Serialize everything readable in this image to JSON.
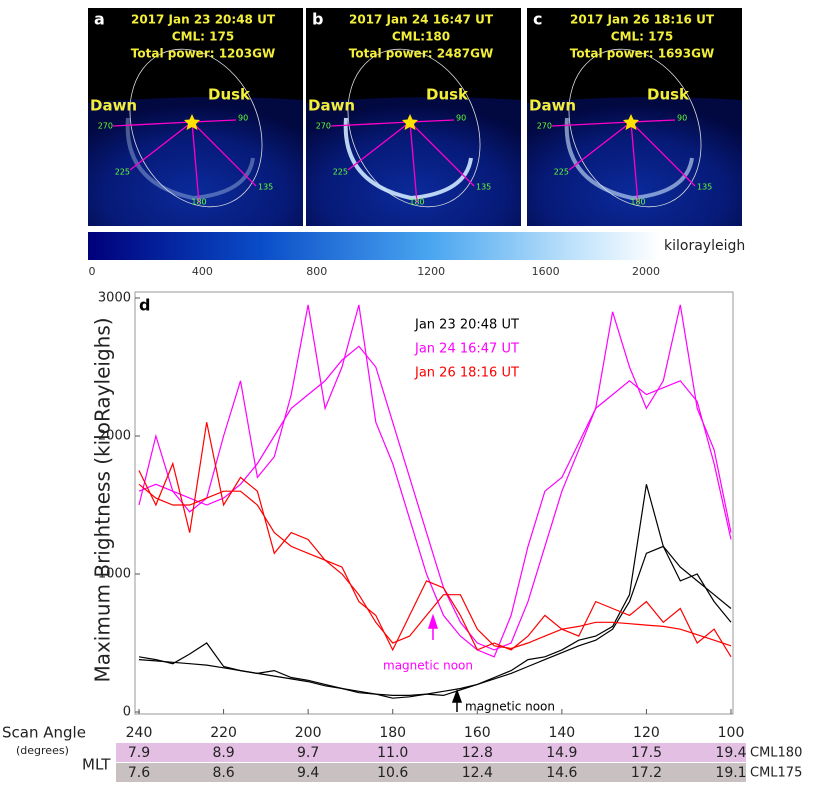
{
  "panels": [
    {
      "letter": "a",
      "lines": [
        "2017 Jan 23 20:48 UT",
        "CML: 175",
        "Total power: 1203GW"
      ],
      "dawn": "Dawn",
      "dusk": "Dusk",
      "angles": [
        "270",
        "90",
        "225",
        "135",
        "180"
      ]
    },
    {
      "letter": "b",
      "lines": [
        "2017 Jan 24 16:47 UT",
        "CML:180",
        "Total power: 2487GW"
      ],
      "dawn": "Dawn",
      "dusk": "Dusk",
      "angles": [
        "270",
        "90",
        "225",
        "135",
        "180"
      ]
    },
    {
      "letter": "c",
      "lines": [
        "2017 Jan 26 18:16 UT",
        "CML: 175",
        "Total power: 1693GW"
      ],
      "dawn": "Dawn",
      "dusk": "Dusk",
      "angles": [
        "270",
        "90",
        "225",
        "135",
        "180"
      ]
    }
  ],
  "colorbar": {
    "lim": [
      0,
      2000
    ],
    "ticks": [
      0,
      400,
      800,
      1200,
      1600,
      2000
    ],
    "label": "kilorayleigh"
  },
  "chart_data": {
    "type": "line",
    "panel_label": "d",
    "y_label": "Maximum Brightness (kiloRayleighs)",
    "x": [
      240,
      236,
      232,
      228,
      224,
      220,
      216,
      212,
      208,
      204,
      200,
      196,
      192,
      188,
      184,
      180,
      176,
      172,
      168,
      164,
      160,
      156,
      152,
      148,
      144,
      140,
      136,
      132,
      128,
      124,
      120,
      116,
      112,
      108,
      104,
      100
    ],
    "xlim": [
      240,
      100
    ],
    "xticks": [
      240,
      220,
      200,
      180,
      160,
      140,
      120,
      100
    ],
    "ylim": [
      0,
      3000
    ],
    "yticks": [
      0,
      1000,
      2000,
      3000
    ],
    "series": [
      {
        "name": "Jan 23 20:48 UT",
        "color": "#000000",
        "values": [
          400,
          380,
          350,
          420,
          500,
          330,
          300,
          280,
          300,
          250,
          230,
          200,
          170,
          140,
          130,
          100,
          110,
          130,
          120,
          160,
          200,
          250,
          300,
          380,
          400,
          450,
          520,
          550,
          620,
          850,
          1650,
          1200,
          950,
          1000,
          800,
          650
        ],
        "smoothed": [
          380,
          370,
          360,
          350,
          340,
          320,
          300,
          280,
          260,
          240,
          220,
          190,
          170,
          150,
          130,
          120,
          120,
          130,
          150,
          170,
          200,
          240,
          280,
          330,
          380,
          430,
          480,
          520,
          600,
          800,
          1150,
          1200,
          1050,
          950,
          850,
          750
        ]
      },
      {
        "name": "Jan 24 16:47 UT",
        "color": "#ff00ff",
        "values": [
          1500,
          2000,
          1600,
          1450,
          1550,
          2000,
          2400,
          1700,
          1850,
          2300,
          2950,
          2200,
          2500,
          2950,
          2100,
          1800,
          1400,
          1000,
          700,
          550,
          450,
          400,
          700,
          1200,
          1600,
          1700,
          1950,
          2200,
          2900,
          2500,
          2200,
          2400,
          2950,
          2200,
          1900,
          1300
        ],
        "smoothed": [
          1600,
          1650,
          1600,
          1550,
          1500,
          1550,
          1650,
          1800,
          2000,
          2200,
          2300,
          2400,
          2550,
          2650,
          2500,
          2100,
          1700,
          1300,
          900,
          650,
          500,
          450,
          500,
          800,
          1200,
          1600,
          1900,
          2200,
          2300,
          2400,
          2300,
          2350,
          2400,
          2250,
          1800,
          1250
        ]
      },
      {
        "name": "Jan 26 18:16 UT",
        "color": "#ff0000",
        "values": [
          1750,
          1500,
          1800,
          1300,
          2100,
          1500,
          1700,
          1600,
          1150,
          1300,
          1250,
          1100,
          1050,
          800,
          700,
          450,
          700,
          950,
          900,
          700,
          450,
          500,
          450,
          550,
          700,
          600,
          550,
          800,
          750,
          700,
          800,
          650,
          750,
          500,
          600,
          400
        ],
        "smoothed": [
          1650,
          1550,
          1500,
          1500,
          1550,
          1600,
          1600,
          1500,
          1300,
          1200,
          1150,
          1100,
          1000,
          850,
          650,
          500,
          550,
          700,
          850,
          850,
          600,
          480,
          460,
          500,
          550,
          600,
          620,
          650,
          650,
          640,
          630,
          620,
          600,
          560,
          520,
          480
        ]
      }
    ],
    "annotations": [
      {
        "text": "magnetic noon",
        "color": "#ff00ff"
      },
      {
        "text": "magnetic noon",
        "color": "#000000"
      }
    ]
  },
  "table": {
    "scan_angle_label": "Scan Angle",
    "degrees_label": "(degrees)",
    "mlt_label": "MLT",
    "rows": [
      {
        "label": "CML180",
        "color": "#e3bfe3",
        "values": [
          "7.9",
          "8.9",
          "9.7",
          "11.0",
          "12.8",
          "14.9",
          "17.5",
          "19.4"
        ]
      },
      {
        "label": "CML175",
        "color": "#c9c1c1",
        "values": [
          "7.6",
          "8.6",
          "9.4",
          "10.6",
          "12.4",
          "14.6",
          "17.2",
          "19.1"
        ]
      }
    ]
  }
}
